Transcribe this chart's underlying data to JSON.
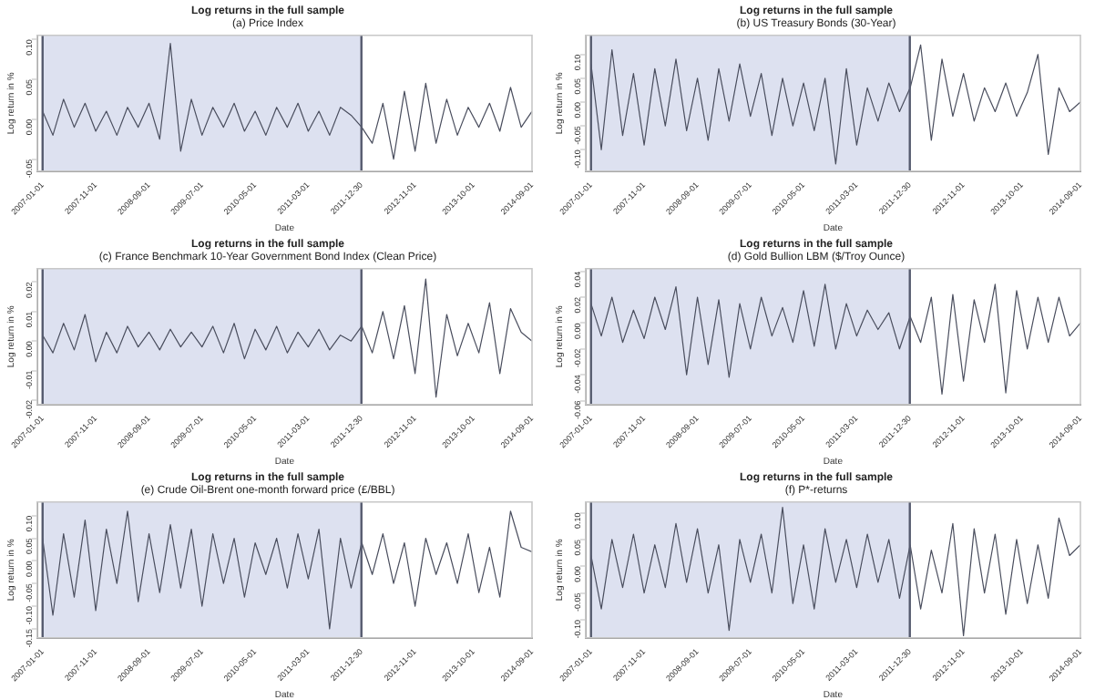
{
  "chart_data": [
    {
      "type": "line",
      "title": "Log returns in the full sample",
      "subtitle": "(a) Price Index",
      "xlabel": "Date",
      "ylabel": "Log return in %",
      "marker": "none",
      "x": [
        "2007-01",
        "2007-03",
        "2007-05",
        "2007-07",
        "2007-09",
        "2007-11",
        "2008-01",
        "2008-03",
        "2008-05",
        "2008-07",
        "2008-09",
        "2008-11",
        "2009-01",
        "2009-03",
        "2009-05",
        "2009-07",
        "2009-09",
        "2009-11",
        "2010-01",
        "2010-03",
        "2010-05",
        "2010-07",
        "2010-09",
        "2010-11",
        "2011-01",
        "2011-03",
        "2011-05",
        "2011-07",
        "2011-09",
        "2011-11",
        "2012-01",
        "2012-03",
        "2012-05",
        "2012-07",
        "2012-09",
        "2012-11",
        "2013-01",
        "2013-03",
        "2013-05",
        "2013-07",
        "2013-09",
        "2013-11",
        "2014-01",
        "2014-03",
        "2014-05",
        "2014-07",
        "2014-09"
      ],
      "xlim": [
        "2006-12-01",
        "2014-09-01"
      ],
      "xticks": [
        "2007-01-01",
        "2007-11-01",
        "2008-09-01",
        "2009-07-01",
        "2010-05-01",
        "2011-03-01",
        "2011-12-30",
        "2012-11-01",
        "2013-10-01",
        "2014-09-01"
      ],
      "ylim": [
        -0.065,
        0.105
      ],
      "yticks": [
        {
          "value": -0.05,
          "label": "-0.05"
        },
        {
          "value": 0,
          "label": "0.00"
        },
        {
          "value": 0.05,
          "label": "0.05"
        },
        {
          "value": 0.1,
          "label": "0.10"
        }
      ],
      "bands": [
        {
          "axis": "x",
          "from": "2007-01-01",
          "to": "2011-12-30",
          "color": "#dde1f0"
        }
      ],
      "ref_lines": [
        {
          "axis": "x",
          "value": "2007-01-01",
          "color": "#555a6e"
        },
        {
          "axis": "x",
          "value": "2011-12-30",
          "color": "#555a6e"
        }
      ],
      "series": [
        {
          "color": "#4a4e5e",
          "values": [
            0.01,
            -0.02,
            0.025,
            -0.01,
            0.02,
            -0.015,
            0.01,
            -0.02,
            0.015,
            -0.01,
            0.02,
            -0.025,
            0.095,
            -0.04,
            0.025,
            -0.02,
            0.015,
            -0.01,
            0.02,
            -0.015,
            0.01,
            -0.02,
            0.015,
            -0.01,
            0.02,
            -0.015,
            0.01,
            -0.02,
            0.015,
            0.005,
            -0.01,
            -0.03,
            0.02,
            -0.05,
            0.035,
            -0.04,
            0.045,
            -0.03,
            0.025,
            -0.02,
            0.015,
            -0.01,
            0.02,
            -0.015,
            0.04,
            -0.01,
            0.01
          ]
        }
      ]
    },
    {
      "type": "line",
      "title": "Log returns in the full sample",
      "subtitle": "(b) US Treasury Bonds (30-Year)",
      "xlabel": "Date",
      "ylabel": "Log return in %",
      "marker": "none",
      "x": [
        "2007-01",
        "2007-03",
        "2007-05",
        "2007-07",
        "2007-09",
        "2007-11",
        "2008-01",
        "2008-03",
        "2008-05",
        "2008-07",
        "2008-09",
        "2008-11",
        "2009-01",
        "2009-03",
        "2009-05",
        "2009-07",
        "2009-09",
        "2009-11",
        "2010-01",
        "2010-03",
        "2010-05",
        "2010-07",
        "2010-09",
        "2010-11",
        "2011-01",
        "2011-03",
        "2011-05",
        "2011-07",
        "2011-09",
        "2011-11",
        "2012-01",
        "2012-03",
        "2012-05",
        "2012-07",
        "2012-09",
        "2012-11",
        "2013-01",
        "2013-03",
        "2013-05",
        "2013-07",
        "2013-09",
        "2013-11",
        "2014-01",
        "2014-03",
        "2014-05",
        "2014-07",
        "2014-09"
      ],
      "xlim": [
        "2006-12-01",
        "2014-09-01"
      ],
      "xticks": [
        "2007-01-01",
        "2007-11-01",
        "2008-09-01",
        "2009-07-01",
        "2010-05-01",
        "2011-03-01",
        "2011-12-30",
        "2012-11-01",
        "2013-10-01",
        "2014-09-01"
      ],
      "ylim": [
        -0.145,
        0.14
      ],
      "yticks": [
        {
          "value": -0.1,
          "label": "-0.10"
        },
        {
          "value": -0.05,
          "label": "-0.05"
        },
        {
          "value": 0,
          "label": "0.00"
        },
        {
          "value": 0.05,
          "label": "0.05"
        },
        {
          "value": 0.1,
          "label": "0.10"
        }
      ],
      "bands": [
        {
          "axis": "x",
          "from": "2007-01-01",
          "to": "2011-12-30",
          "color": "#dde1f0"
        }
      ],
      "ref_lines": [
        {
          "axis": "x",
          "value": "2007-01-01",
          "color": "#555a6e"
        },
        {
          "axis": "x",
          "value": "2011-12-30",
          "color": "#555a6e"
        }
      ],
      "series": [
        {
          "color": "#4a4e5e",
          "values": [
            0.08,
            -0.1,
            0.11,
            -0.07,
            0.06,
            -0.09,
            0.07,
            -0.05,
            0.09,
            -0.06,
            0.05,
            -0.08,
            0.07,
            -0.04,
            0.08,
            -0.03,
            0.06,
            -0.07,
            0.05,
            -0.05,
            0.04,
            -0.06,
            0.05,
            -0.13,
            0.07,
            -0.09,
            0.03,
            -0.04,
            0.04,
            -0.02,
            0.03,
            0.12,
            -0.08,
            0.09,
            -0.03,
            0.06,
            -0.04,
            0.03,
            -0.02,
            0.04,
            -0.03,
            0.02,
            0.1,
            -0.11,
            0.03,
            -0.02,
            0.0
          ]
        }
      ]
    },
    {
      "type": "line",
      "title": "Log returns in the full sample",
      "subtitle": "(c) France Benchmark 10-Year Government Bond Index (Clean Price)",
      "xlabel": "Date",
      "ylabel": "Log return in %",
      "marker": "none",
      "x": [
        "2007-01",
        "2007-03",
        "2007-05",
        "2007-07",
        "2007-09",
        "2007-11",
        "2008-01",
        "2008-03",
        "2008-05",
        "2008-07",
        "2008-09",
        "2008-11",
        "2009-01",
        "2009-03",
        "2009-05",
        "2009-07",
        "2009-09",
        "2009-11",
        "2010-01",
        "2010-03",
        "2010-05",
        "2010-07",
        "2010-09",
        "2010-11",
        "2011-01",
        "2011-03",
        "2011-05",
        "2011-07",
        "2011-09",
        "2011-11",
        "2012-01",
        "2012-03",
        "2012-05",
        "2012-07",
        "2012-09",
        "2012-11",
        "2013-01",
        "2013-03",
        "2013-05",
        "2013-07",
        "2013-09",
        "2013-11",
        "2014-01",
        "2014-03",
        "2014-05",
        "2014-07",
        "2014-09"
      ],
      "xlim": [
        "2006-12-01",
        "2014-09-01"
      ],
      "xticks": [
        "2007-01-01",
        "2007-11-01",
        "2008-09-01",
        "2009-07-01",
        "2010-05-01",
        "2011-03-01",
        "2011-12-30",
        "2012-11-01",
        "2013-10-01",
        "2014-09-01"
      ],
      "ylim": [
        -0.0215,
        0.0245
      ],
      "yticks": [
        {
          "value": -0.02,
          "label": "-0.02"
        },
        {
          "value": -0.01,
          "label": "-0.01"
        },
        {
          "value": 0,
          "label": "0.00"
        },
        {
          "value": 0.01,
          "label": "0.01"
        },
        {
          "value": 0.02,
          "label": "0.02"
        }
      ],
      "bands": [
        {
          "axis": "x",
          "from": "2007-01-01",
          "to": "2011-12-30",
          "color": "#dde1f0"
        }
      ],
      "ref_lines": [
        {
          "axis": "x",
          "value": "2007-01-01",
          "color": "#555a6e"
        },
        {
          "axis": "x",
          "value": "2011-12-30",
          "color": "#555a6e"
        }
      ],
      "series": [
        {
          "color": "#4a4e5e",
          "values": [
            0.002,
            -0.004,
            0.006,
            -0.003,
            0.009,
            -0.007,
            0.003,
            -0.004,
            0.005,
            -0.002,
            0.003,
            -0.003,
            0.004,
            -0.002,
            0.003,
            -0.002,
            0.005,
            -0.004,
            0.006,
            -0.006,
            0.004,
            -0.003,
            0.005,
            -0.004,
            0.003,
            -0.002,
            0.004,
            -0.003,
            0.002,
            0.0,
            0.005,
            -0.004,
            0.01,
            -0.006,
            0.012,
            -0.011,
            0.021,
            -0.019,
            0.009,
            -0.005,
            0.006,
            -0.004,
            0.013,
            -0.011,
            0.011,
            0.003,
            0.0
          ]
        }
      ]
    },
    {
      "type": "line",
      "title": "Log returns in the full sample",
      "subtitle": "(d) Gold Bullion LBM ($/Troy Ounce)",
      "xlabel": "Date",
      "ylabel": "Log return in %",
      "marker": "none",
      "x": [
        "2007-01",
        "2007-03",
        "2007-05",
        "2007-07",
        "2007-09",
        "2007-11",
        "2008-01",
        "2008-03",
        "2008-05",
        "2008-07",
        "2008-09",
        "2008-11",
        "2009-01",
        "2009-03",
        "2009-05",
        "2009-07",
        "2009-09",
        "2009-11",
        "2010-01",
        "2010-03",
        "2010-05",
        "2010-07",
        "2010-09",
        "2010-11",
        "2011-01",
        "2011-03",
        "2011-05",
        "2011-07",
        "2011-09",
        "2011-11",
        "2012-01",
        "2012-03",
        "2012-05",
        "2012-07",
        "2012-09",
        "2012-11",
        "2013-01",
        "2013-03",
        "2013-05",
        "2013-07",
        "2013-09",
        "2013-11",
        "2014-01",
        "2014-03",
        "2014-05",
        "2014-07",
        "2014-09"
      ],
      "xlim": [
        "2006-12-01",
        "2014-09-01"
      ],
      "xticks": [
        "2007-01-01",
        "2007-11-01",
        "2008-09-01",
        "2009-07-01",
        "2010-05-01",
        "2011-03-01",
        "2011-12-30",
        "2012-11-01",
        "2013-10-01",
        "2014-09-01"
      ],
      "ylim": [
        -0.063,
        0.042
      ],
      "yticks": [
        {
          "value": -0.06,
          "label": "-0.06"
        },
        {
          "value": -0.04,
          "label": "-0.04"
        },
        {
          "value": -0.02,
          "label": "-0.02"
        },
        {
          "value": 0,
          "label": "0.00"
        },
        {
          "value": 0.02,
          "label": "0.02"
        },
        {
          "value": 0.04,
          "label": "0.04"
        }
      ],
      "bands": [
        {
          "axis": "x",
          "from": "2007-01-01",
          "to": "2011-12-30",
          "color": "#dde1f0"
        }
      ],
      "ref_lines": [
        {
          "axis": "x",
          "value": "2007-01-01",
          "color": "#555a6e"
        },
        {
          "axis": "x",
          "value": "2011-12-30",
          "color": "#555a6e"
        }
      ],
      "series": [
        {
          "color": "#4a4e5e",
          "values": [
            0.015,
            -0.01,
            0.02,
            -0.015,
            0.01,
            -0.012,
            0.02,
            -0.005,
            0.028,
            -0.04,
            0.02,
            -0.032,
            0.018,
            -0.042,
            0.015,
            -0.02,
            0.02,
            -0.01,
            0.012,
            -0.015,
            0.025,
            -0.018,
            0.03,
            -0.02,
            0.015,
            -0.01,
            0.01,
            -0.005,
            0.008,
            -0.02,
            0.005,
            -0.015,
            0.02,
            -0.055,
            0.022,
            -0.045,
            0.018,
            -0.015,
            0.03,
            -0.054,
            0.025,
            -0.02,
            0.02,
            -0.015,
            0.02,
            -0.01,
            0.0
          ]
        }
      ]
    },
    {
      "type": "line",
      "title": "Log returns in the full sample",
      "subtitle": "(e) Crude Oil-Brent one-month forward price (£/BBL)",
      "xlabel": "Date",
      "ylabel": "Log return in %",
      "marker": "none",
      "x": [
        "2007-01",
        "2007-03",
        "2007-05",
        "2007-07",
        "2007-09",
        "2007-11",
        "2008-01",
        "2008-03",
        "2008-05",
        "2008-07",
        "2008-09",
        "2008-11",
        "2009-01",
        "2009-03",
        "2009-05",
        "2009-07",
        "2009-09",
        "2009-11",
        "2010-01",
        "2010-03",
        "2010-05",
        "2010-07",
        "2010-09",
        "2010-11",
        "2011-01",
        "2011-03",
        "2011-05",
        "2011-07",
        "2011-09",
        "2011-11",
        "2012-01",
        "2012-03",
        "2012-05",
        "2012-07",
        "2012-09",
        "2012-11",
        "2013-01",
        "2013-03",
        "2013-05",
        "2013-07",
        "2013-09",
        "2013-11",
        "2014-01",
        "2014-03",
        "2014-05",
        "2014-07",
        "2014-09"
      ],
      "xlim": [
        "2006-12-01",
        "2014-09-01"
      ],
      "xticks": [
        "2007-01-01",
        "2007-11-01",
        "2008-09-01",
        "2009-07-01",
        "2010-05-01",
        "2011-03-01",
        "2011-12-30",
        "2012-11-01",
        "2013-10-01",
        "2014-09-01"
      ],
      "ylim": [
        -0.17,
        0.13
      ],
      "yticks": [
        {
          "value": -0.15,
          "label": "-0.15"
        },
        {
          "value": -0.1,
          "label": "-0.10"
        },
        {
          "value": -0.05,
          "label": "-0.05"
        },
        {
          "value": 0,
          "label": "0.00"
        },
        {
          "value": 0.05,
          "label": "0.05"
        },
        {
          "value": 0.1,
          "label": "0.10"
        }
      ],
      "bands": [
        {
          "axis": "x",
          "from": "2007-01-01",
          "to": "2011-12-30",
          "color": "#dde1f0"
        }
      ],
      "ref_lines": [
        {
          "axis": "x",
          "value": "2007-01-01",
          "color": "#555a6e"
        },
        {
          "axis": "x",
          "value": "2011-12-30",
          "color": "#555a6e"
        }
      ],
      "series": [
        {
          "color": "#4a4e5e",
          "values": [
            0.05,
            -0.12,
            0.06,
            -0.08,
            0.09,
            -0.11,
            0.07,
            -0.05,
            0.11,
            -0.09,
            0.06,
            -0.07,
            0.08,
            -0.06,
            0.07,
            -0.1,
            0.06,
            -0.05,
            0.05,
            -0.08,
            0.04,
            -0.03,
            0.05,
            -0.06,
            0.06,
            -0.04,
            0.07,
            -0.15,
            0.05,
            -0.06,
            0.04,
            -0.03,
            0.06,
            -0.05,
            0.04,
            -0.1,
            0.05,
            -0.03,
            0.04,
            -0.05,
            0.06,
            -0.07,
            0.03,
            -0.08,
            0.11,
            0.03,
            0.02
          ]
        }
      ]
    },
    {
      "type": "line",
      "title": "Log returns in the full sample",
      "subtitle": "(f) P*-returns",
      "xlabel": "Date",
      "ylabel": "Log return in %",
      "marker": "none",
      "x": [
        "2007-01",
        "2007-03",
        "2007-05",
        "2007-07",
        "2007-09",
        "2007-11",
        "2008-01",
        "2008-03",
        "2008-05",
        "2008-07",
        "2008-09",
        "2008-11",
        "2009-01",
        "2009-03",
        "2009-05",
        "2009-07",
        "2009-09",
        "2009-11",
        "2010-01",
        "2010-03",
        "2010-05",
        "2010-07",
        "2010-09",
        "2010-11",
        "2011-01",
        "2011-03",
        "2011-05",
        "2011-07",
        "2011-09",
        "2011-11",
        "2012-01",
        "2012-03",
        "2012-05",
        "2012-07",
        "2012-09",
        "2012-11",
        "2013-01",
        "2013-03",
        "2013-05",
        "2013-07",
        "2013-09",
        "2013-11",
        "2014-01",
        "2014-03",
        "2014-05",
        "2014-07",
        "2014-09"
      ],
      "xlim": [
        "2006-12-01",
        "2014-09-01"
      ],
      "xticks": [
        "2007-01-01",
        "2007-11-01",
        "2008-09-01",
        "2009-07-01",
        "2010-05-01",
        "2011-03-01",
        "2011-12-30",
        "2012-11-01",
        "2013-10-01",
        "2014-09-01"
      ],
      "ylim": [
        -0.134,
        0.12
      ],
      "yticks": [
        {
          "value": -0.1,
          "label": "-0.10"
        },
        {
          "value": -0.05,
          "label": "-0.05"
        },
        {
          "value": 0,
          "label": "0.00"
        },
        {
          "value": 0.05,
          "label": "0.05"
        },
        {
          "value": 0.1,
          "label": "0.10"
        }
      ],
      "bands": [
        {
          "axis": "x",
          "from": "2007-01-01",
          "to": "2011-12-30",
          "color": "#dde1f0"
        }
      ],
      "ref_lines": [
        {
          "axis": "x",
          "value": "2007-01-01",
          "color": "#555a6e"
        },
        {
          "axis": "x",
          "value": "2011-12-30",
          "color": "#555a6e"
        }
      ],
      "series": [
        {
          "color": "#4a4e5e",
          "values": [
            0.02,
            -0.08,
            0.05,
            -0.04,
            0.06,
            -0.05,
            0.04,
            -0.04,
            0.08,
            -0.03,
            0.07,
            -0.05,
            0.04,
            -0.12,
            0.05,
            -0.03,
            0.06,
            -0.05,
            0.11,
            -0.07,
            0.04,
            -0.08,
            0.07,
            -0.03,
            0.05,
            -0.04,
            0.06,
            -0.03,
            0.05,
            -0.06,
            0.04,
            -0.08,
            0.03,
            -0.05,
            0.08,
            -0.13,
            0.07,
            -0.05,
            0.06,
            -0.09,
            0.05,
            -0.07,
            0.04,
            -0.06,
            0.09,
            0.02,
            0.04
          ]
        }
      ]
    }
  ]
}
